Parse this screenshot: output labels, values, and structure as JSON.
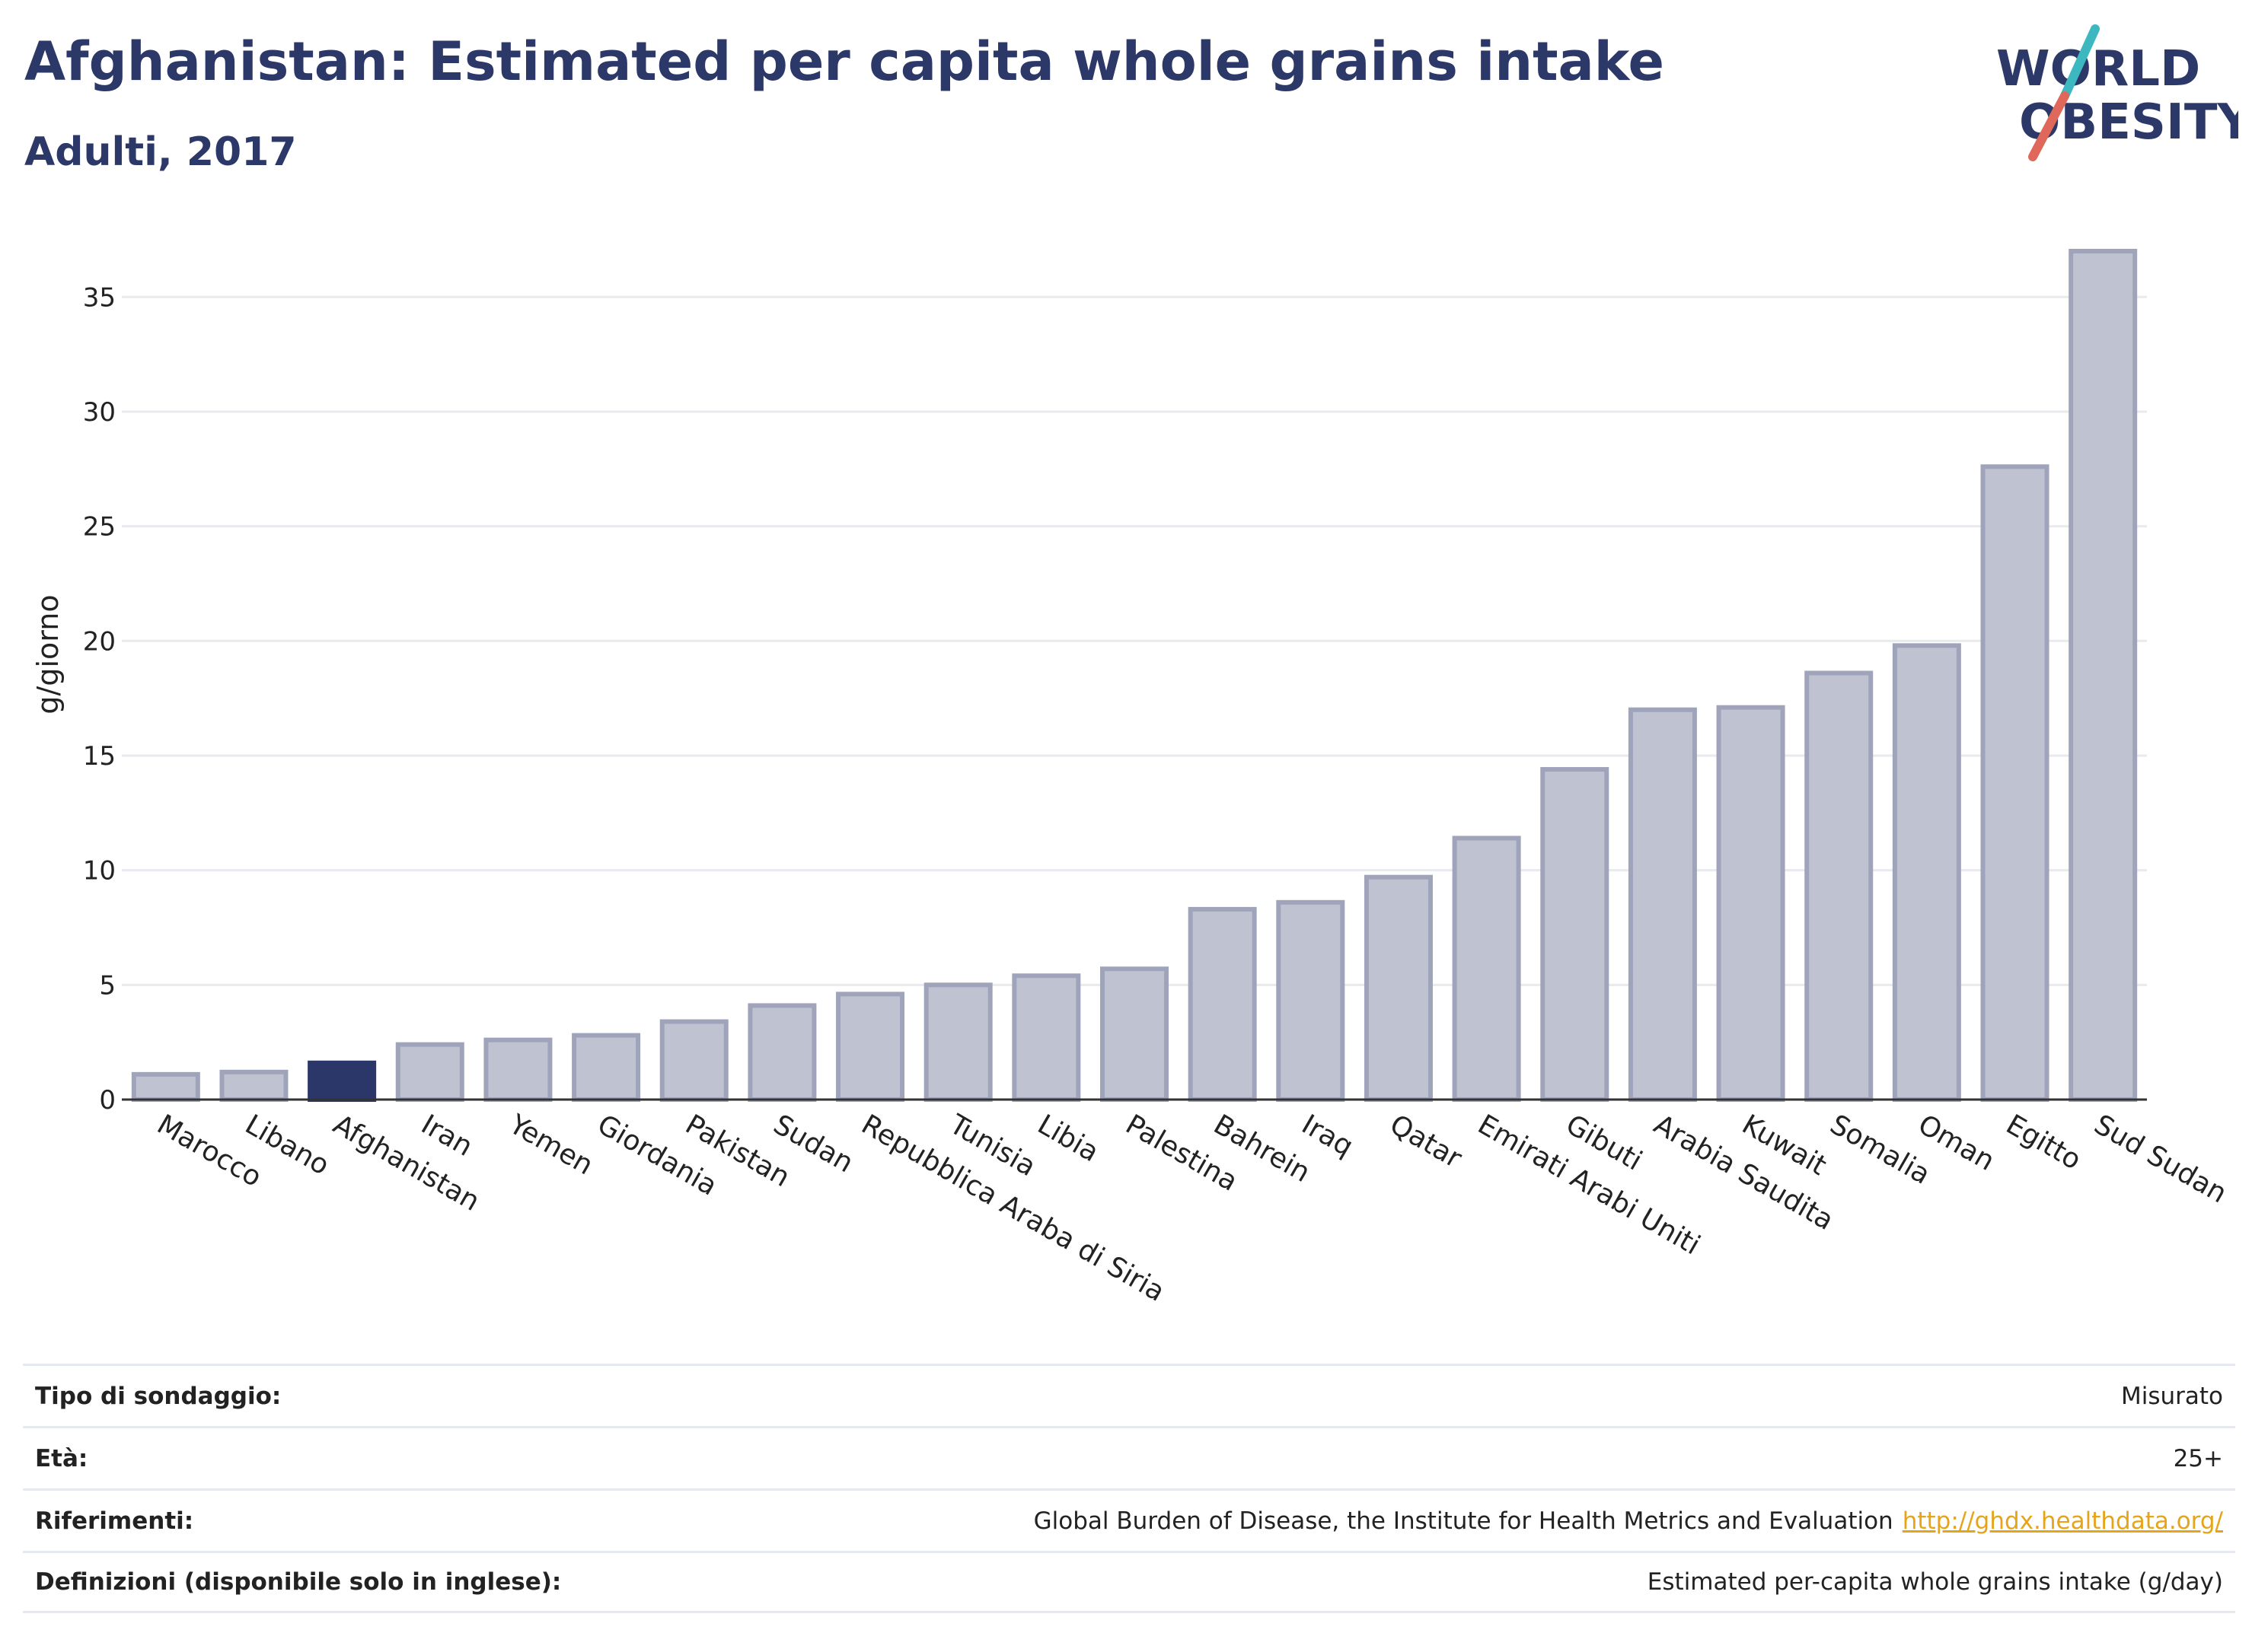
{
  "header": {
    "title": "Afghanistan: Estimated per capita whole grains intake",
    "subtitle": "Adulti, 2017",
    "logo_line1": "WORLD",
    "logo_line2": "OBESITY"
  },
  "colors": {
    "highlight": "#2b3768",
    "bar_fill": "#bfc3d1",
    "bar_stroke": "#9fa4bb",
    "logo_text": "#2b3868",
    "logo_slash_red": "#e0685a",
    "logo_slash_teal": "#3db8c0",
    "link": "#e4a51b"
  },
  "chart_data": {
    "type": "bar",
    "title": "Afghanistan: Estimated per capita whole grains intake",
    "subtitle": "Adulti, 2017",
    "xlabel": "",
    "ylabel": "g/giorno",
    "ylim": [
      0,
      37.5
    ],
    "yticks": [
      0,
      5,
      10,
      15,
      20,
      25,
      30,
      35
    ],
    "grid": true,
    "highlight": "Afghanistan",
    "categories": [
      "Marocco",
      "Libano",
      "Afghanistan",
      "Iran",
      "Yemen",
      "Giordania",
      "Pakistan",
      "Sudan",
      "Repubblica Araba di Siria",
      "Tunisia",
      "Libia",
      "Palestina",
      "Bahrein",
      "Iraq",
      "Qatar",
      "Emirati Arabi Uniti",
      "Gibuti",
      "Arabia Saudita",
      "Kuwait",
      "Somalia",
      "Oman",
      "Egitto",
      "Sud Sudan"
    ],
    "values": [
      1.1,
      1.2,
      1.6,
      2.4,
      2.6,
      2.8,
      3.4,
      4.1,
      4.6,
      5.0,
      5.4,
      5.7,
      8.3,
      8.6,
      9.7,
      11.4,
      14.4,
      17.0,
      17.1,
      18.6,
      19.8,
      27.6,
      37.0
    ]
  },
  "info": [
    {
      "label": "Tipo di sondaggio:",
      "value": "Misurato"
    },
    {
      "label": "Età:",
      "value": "25+"
    },
    {
      "label": "Riferimenti:",
      "value": "Global Burden of Disease, the Institute for Health Metrics and Evaluation",
      "link": "http://ghdx.healthdata.org/"
    },
    {
      "label": "Definizioni (disponibile solo in inglese):",
      "value": "Estimated per-capita whole grains intake (g/day)"
    }
  ]
}
